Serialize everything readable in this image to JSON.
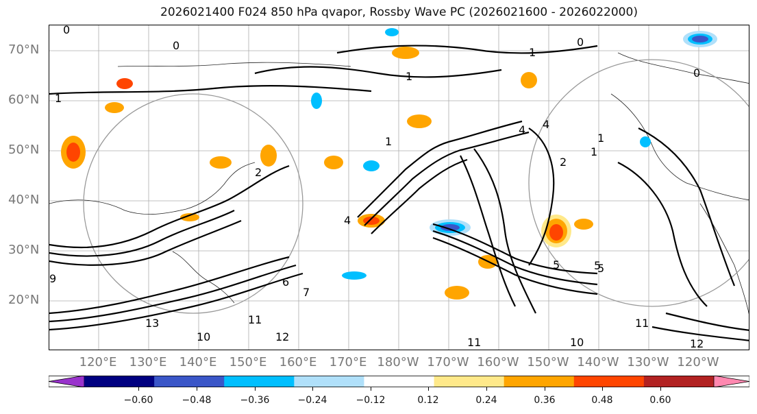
{
  "title": "2026021400 F024 850 hPa qvapor, Rossby Wave PC (2026021600 - 2026022000)",
  "map": {
    "lat_labels": [
      "70°N",
      "60°N",
      "50°N",
      "40°N",
      "30°N",
      "20°N"
    ],
    "lon_labels": [
      "120°E",
      "130°E",
      "140°E",
      "150°E",
      "160°E",
      "170°E",
      "180°W",
      "170°W",
      "160°W",
      "150°W",
      "140°W",
      "130°W",
      "120°W"
    ],
    "contour_labels": [
      "0",
      "1",
      "0",
      "1",
      "0",
      "1",
      "1",
      "2",
      "1",
      "0",
      "4",
      "4",
      "1",
      "5",
      "5",
      "6",
      "7",
      "10",
      "11",
      "12",
      "13",
      "9",
      "11",
      "12",
      "11",
      "10",
      "5",
      "4",
      "2"
    ]
  },
  "colorbar": {
    "colors": [
      "#9932cc",
      "#000080",
      "#3a56c8",
      "#00bfff",
      "#b0e0fa",
      "#ffffff",
      "#ffe98a",
      "#ffa500",
      "#ff4500",
      "#b22222",
      "#ff88b0"
    ],
    "ticks": [
      "−0.60",
      "−0.48",
      "−0.36",
      "−0.24",
      "−0.12",
      "0.12",
      "0.24",
      "0.36",
      "0.48",
      "0.60"
    ]
  }
}
